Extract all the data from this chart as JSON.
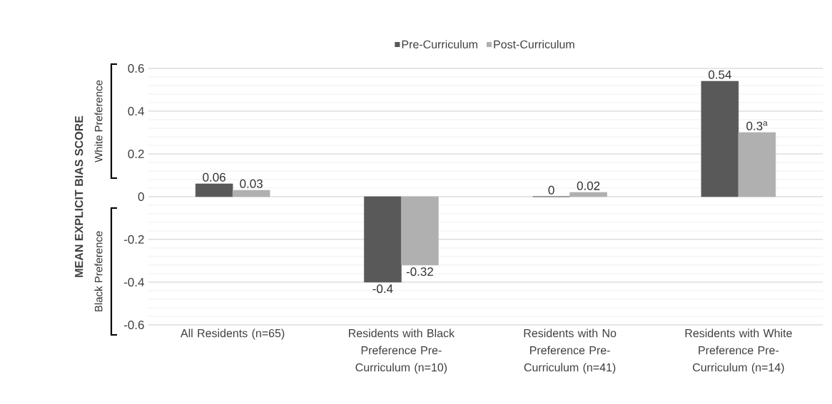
{
  "chart_data": {
    "type": "bar",
    "ylabel": "MEAN EXPLICIT BIAS SCORE",
    "categories": [
      "All Residents (n=65)",
      "Residents with Black Preference Pre-Curriculum (n=10)",
      "Residents with No Preference Pre-Curriculum (n=41)",
      "Residents with White Preference Pre-Curriculum (n=14)"
    ],
    "series": [
      {
        "name": "Pre-Curriculum",
        "color": "#595959",
        "values": [
          0.06,
          -0.4,
          0,
          0.54
        ],
        "value_labels": [
          "0.06",
          "-0.4",
          "0",
          "0.54"
        ]
      },
      {
        "name": "Post-Curriculum",
        "color": "#b0b0b0",
        "values": [
          0.03,
          -0.32,
          0.02,
          0.3
        ],
        "value_labels": [
          "0.03",
          "-0.32",
          "0.02",
          "0.3$^{a}$"
        ]
      }
    ],
    "ylim": [
      -0.6,
      0.6
    ],
    "yticks": [
      -0.6,
      -0.4,
      -0.2,
      0,
      0.2,
      0.4,
      0.6
    ],
    "grid": "y",
    "legend": "top",
    "annotations": [
      "White Preference",
      "Black Preference"
    ]
  }
}
